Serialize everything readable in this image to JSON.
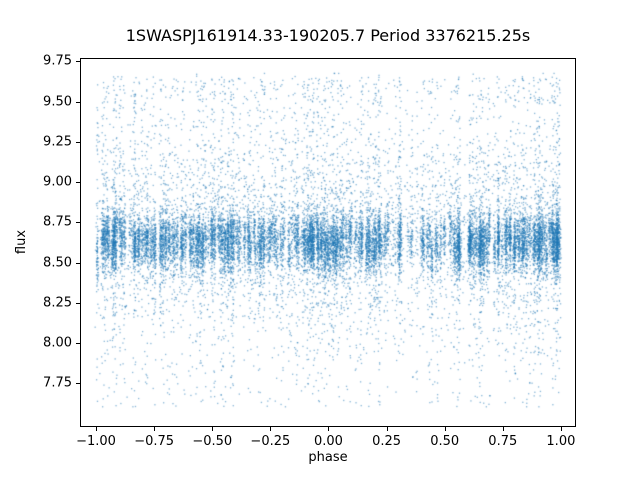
{
  "chart_data": {
    "type": "scatter",
    "title": "1SWASPJ161914.33-190205.7 Period 3376215.25s",
    "xlabel": "phase",
    "ylabel": "flux",
    "xlim": [
      -1.069,
      1.065
    ],
    "ylim": [
      7.48,
      9.77
    ],
    "xticks": [
      {
        "v": -1.0,
        "label": "−1.00"
      },
      {
        "v": -0.75,
        "label": "−0.75"
      },
      {
        "v": -0.5,
        "label": "−0.50"
      },
      {
        "v": -0.25,
        "label": "−0.25"
      },
      {
        "v": 0.0,
        "label": "0.00"
      },
      {
        "v": 0.25,
        "label": "0.25"
      },
      {
        "v": 0.5,
        "label": "0.50"
      },
      {
        "v": 0.75,
        "label": "0.75"
      },
      {
        "v": 1.0,
        "label": "1.00"
      }
    ],
    "yticks": [
      {
        "v": 7.75,
        "label": "7.75"
      },
      {
        "v": 8.0,
        "label": "8.00"
      },
      {
        "v": 8.25,
        "label": "8.25"
      },
      {
        "v": 8.5,
        "label": "8.50"
      },
      {
        "v": 8.75,
        "label": "8.75"
      },
      {
        "v": 9.0,
        "label": "9.00"
      },
      {
        "v": 9.25,
        "label": "9.25"
      },
      {
        "v": 9.5,
        "label": "9.50"
      },
      {
        "v": 9.75,
        "label": "9.75"
      }
    ],
    "marker_color": "rgba(31,119,180,0.55)",
    "grid": false,
    "legend": "none",
    "description": "Phase-folded photometric light curve; dense core of flux values between ~8.4 and ~8.9 centered near 8.63, vertical streaks at many phases, upward outliers reaching ~9.65 and downward outliers reaching ~7.6, phases spanning -1.0 to 1.0",
    "generator": {
      "seed": 42,
      "n_columns": 340,
      "points_per_column_min": 15,
      "points_per_column_max": 85,
      "background_points": 2200,
      "flux_core_mean": 8.63,
      "flux_core_sd": 0.08,
      "column_mean_jitter_sd": 0.045,
      "wide_sd": 0.25,
      "frac_wide": 0.15,
      "frac_up_tail": 0.05,
      "up_tail_min": 8.9,
      "up_tail_max": 9.65,
      "frac_down_tail": 0.02,
      "down_tail_min": 7.6,
      "down_tail_max": 8.3,
      "frac_top_band": 0.012,
      "top_band_min": 9.5,
      "top_band_max": 9.66,
      "flux_min_clip": 7.6,
      "flux_max_clip": 9.68
    }
  }
}
